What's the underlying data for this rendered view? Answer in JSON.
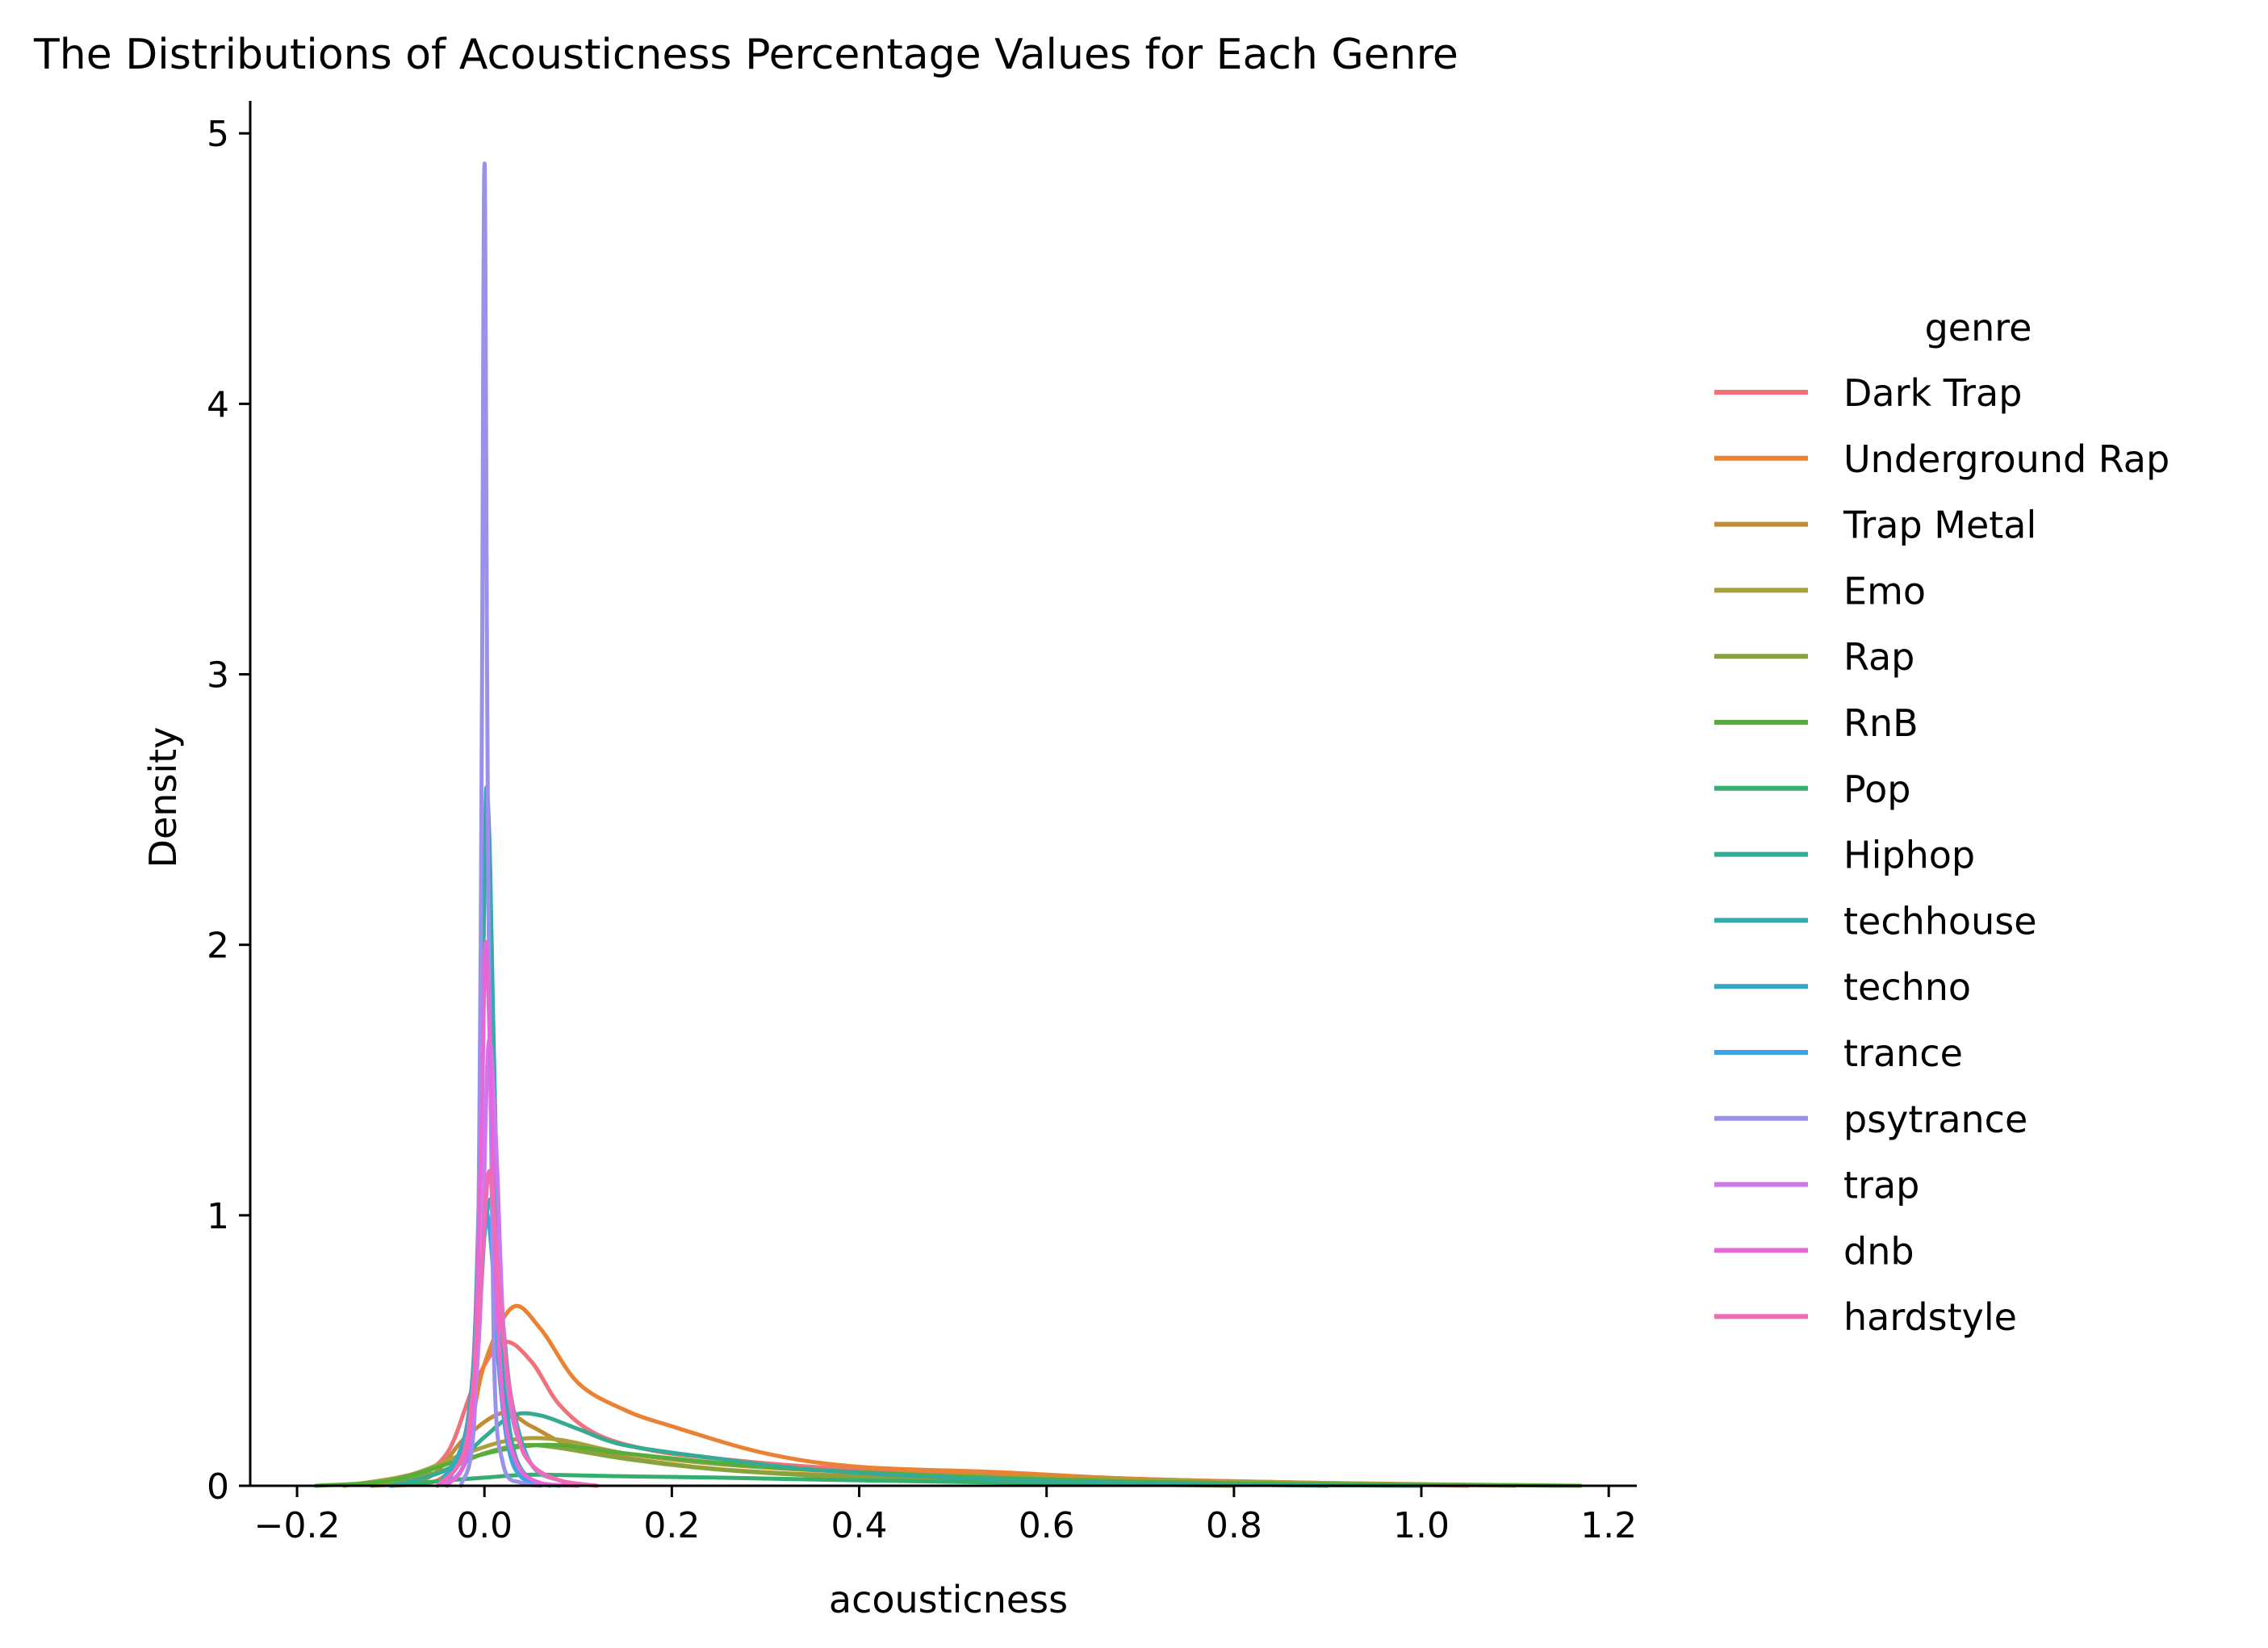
{
  "chart_data": {
    "type": "line",
    "title": "The Distributions of Acousticness Percentage Values for Each Genre",
    "xlabel": "acousticness",
    "ylabel": "Density",
    "xlim": [
      -0.25,
      1.23
    ],
    "ylim": [
      0,
      5.12
    ],
    "xticks": [
      -0.2,
      0.0,
      0.2,
      0.4,
      0.6,
      0.8,
      1.0,
      1.2
    ],
    "xtick_labels": [
      "−0.2",
      "0.0",
      "0.2",
      "0.4",
      "0.6",
      "0.8",
      "1.0",
      "1.2"
    ],
    "yticks": [
      0,
      1,
      2,
      3,
      4,
      5
    ],
    "ytick_labels": [
      "0",
      "1",
      "2",
      "3",
      "4",
      "5"
    ],
    "grid": false,
    "legend": {
      "title": "genre",
      "placement": "right"
    },
    "series": [
      {
        "name": "Dark Trap",
        "color": "#f0717a",
        "x": [
          -0.12,
          -0.08,
          -0.04,
          -0.01,
          0.02,
          0.05,
          0.08,
          0.12,
          0.18,
          0.25,
          0.35,
          0.5,
          0.7,
          0.9,
          1.05
        ],
        "y": [
          0,
          0.02,
          0.12,
          0.38,
          0.53,
          0.46,
          0.3,
          0.19,
          0.13,
          0.1,
          0.07,
          0.05,
          0.025,
          0.01,
          0
        ]
      },
      {
        "name": "Underground Rap",
        "color": "#ea8133",
        "x": [
          -0.1,
          -0.05,
          -0.02,
          0.0,
          0.03,
          0.06,
          0.1,
          0.15,
          0.2,
          0.3,
          0.4,
          0.55,
          0.7,
          0.9,
          1.1
        ],
        "y": [
          0,
          0.02,
          0.15,
          0.45,
          0.66,
          0.58,
          0.38,
          0.28,
          0.22,
          0.12,
          0.07,
          0.05,
          0.025,
          0.01,
          0
        ]
      },
      {
        "name": "Trap Metal",
        "color": "#c18c34",
        "x": [
          -0.12,
          -0.06,
          -0.02,
          0.02,
          0.05,
          0.1,
          0.2,
          0.3,
          0.45,
          0.6,
          0.8,
          1.0
        ],
        "y": [
          0,
          0.03,
          0.18,
          0.27,
          0.22,
          0.14,
          0.08,
          0.05,
          0.03,
          0.015,
          0.005,
          0
        ]
      },
      {
        "name": "Emo",
        "color": "#a8a03a",
        "x": [
          -0.15,
          -0.08,
          -0.02,
          0.03,
          0.08,
          0.15,
          0.25,
          0.4,
          0.6,
          0.8,
          1.0,
          1.15
        ],
        "y": [
          0,
          0.04,
          0.12,
          0.17,
          0.17,
          0.12,
          0.08,
          0.05,
          0.03,
          0.015,
          0.006,
          0
        ]
      },
      {
        "name": "Rap",
        "color": "#86a43a",
        "x": [
          -0.12,
          -0.05,
          0.0,
          0.04,
          0.08,
          0.15,
          0.25,
          0.4,
          0.6,
          0.8
        ],
        "y": [
          0,
          0.05,
          0.12,
          0.15,
          0.14,
          0.1,
          0.06,
          0.03,
          0.01,
          0
        ]
      },
      {
        "name": "RnB",
        "color": "#55ae3a",
        "x": [
          -0.18,
          -0.1,
          -0.03,
          0.03,
          0.08,
          0.15,
          0.3,
          0.5,
          0.7,
          0.9,
          1.1,
          1.17
        ],
        "y": [
          0,
          0.02,
          0.09,
          0.14,
          0.15,
          0.12,
          0.07,
          0.035,
          0.015,
          0.006,
          0.002,
          0
        ]
      },
      {
        "name": "Pop",
        "color": "#34af70",
        "x": [
          -0.1,
          -0.04,
          0.0,
          0.04,
          0.08,
          0.15,
          0.25,
          0.4,
          0.6,
          0.8,
          1.0
        ],
        "y": [
          0,
          0.02,
          0.03,
          0.04,
          0.04,
          0.035,
          0.03,
          0.02,
          0.01,
          0.004,
          0
        ]
      },
      {
        "name": "Hiphop",
        "color": "#35ab93",
        "x": [
          -0.1,
          -0.04,
          0.0,
          0.03,
          0.06,
          0.1,
          0.15,
          0.25,
          0.35,
          0.5,
          0.7,
          0.9
        ],
        "y": [
          0,
          0.06,
          0.18,
          0.26,
          0.26,
          0.21,
          0.15,
          0.1,
          0.06,
          0.03,
          0.01,
          0
        ]
      },
      {
        "name": "techhouse",
        "color": "#36a9aa",
        "x": [
          -0.04,
          -0.015,
          -0.005,
          0.0,
          0.002,
          0.006,
          0.012,
          0.02,
          0.03,
          0.05,
          0.08
        ],
        "y": [
          0,
          0.3,
          1.2,
          2.2,
          2.58,
          2.3,
          1.3,
          0.5,
          0.15,
          0.02,
          0
        ]
      },
      {
        "name": "techno",
        "color": "#38a7c3",
        "x": [
          -0.05,
          -0.02,
          -0.005,
          0.005,
          0.012,
          0.02,
          0.03,
          0.05,
          0.08,
          0.12
        ],
        "y": [
          0,
          0.2,
          0.75,
          1.05,
          0.95,
          0.6,
          0.3,
          0.08,
          0.02,
          0
        ]
      },
      {
        "name": "trance",
        "color": "#3ea3e0",
        "x": [
          -0.04,
          -0.015,
          -0.004,
          0.002,
          0.008,
          0.015,
          0.025,
          0.04,
          0.07
        ],
        "y": [
          0,
          0.15,
          0.7,
          1.0,
          0.85,
          0.45,
          0.15,
          0.03,
          0
        ]
      },
      {
        "name": "psytrance",
        "color": "#9a91ec",
        "x": [
          -0.025,
          -0.01,
          -0.004,
          -0.001,
          0.0,
          0.001,
          0.004,
          0.01,
          0.02,
          0.04,
          0.06
        ],
        "y": [
          0,
          0.3,
          2.0,
          4.4,
          4.88,
          4.5,
          2.3,
          0.5,
          0.08,
          0.01,
          0
        ]
      },
      {
        "name": "trap",
        "color": "#cc79ef",
        "x": [
          -0.05,
          -0.02,
          -0.005,
          0.004,
          0.012,
          0.02,
          0.03,
          0.05,
          0.08,
          0.12
        ],
        "y": [
          0,
          0.1,
          0.6,
          1.62,
          1.3,
          0.6,
          0.25,
          0.08,
          0.02,
          0
        ]
      },
      {
        "name": "dnb",
        "color": "#e867d8",
        "x": [
          -0.04,
          -0.015,
          -0.004,
          0.001,
          0.006,
          0.012,
          0.02,
          0.035,
          0.06,
          0.1
        ],
        "y": [
          0,
          0.2,
          1.2,
          2.0,
          1.6,
          0.8,
          0.3,
          0.08,
          0.01,
          0
        ]
      },
      {
        "name": "hardstyle",
        "color": "#f06bb4",
        "x": [
          -0.05,
          -0.02,
          -0.005,
          0.004,
          0.01,
          0.02,
          0.035,
          0.05,
          0.08,
          0.12
        ],
        "y": [
          0,
          0.15,
          0.7,
          1.15,
          1.0,
          0.55,
          0.2,
          0.08,
          0.02,
          0
        ]
      }
    ]
  }
}
